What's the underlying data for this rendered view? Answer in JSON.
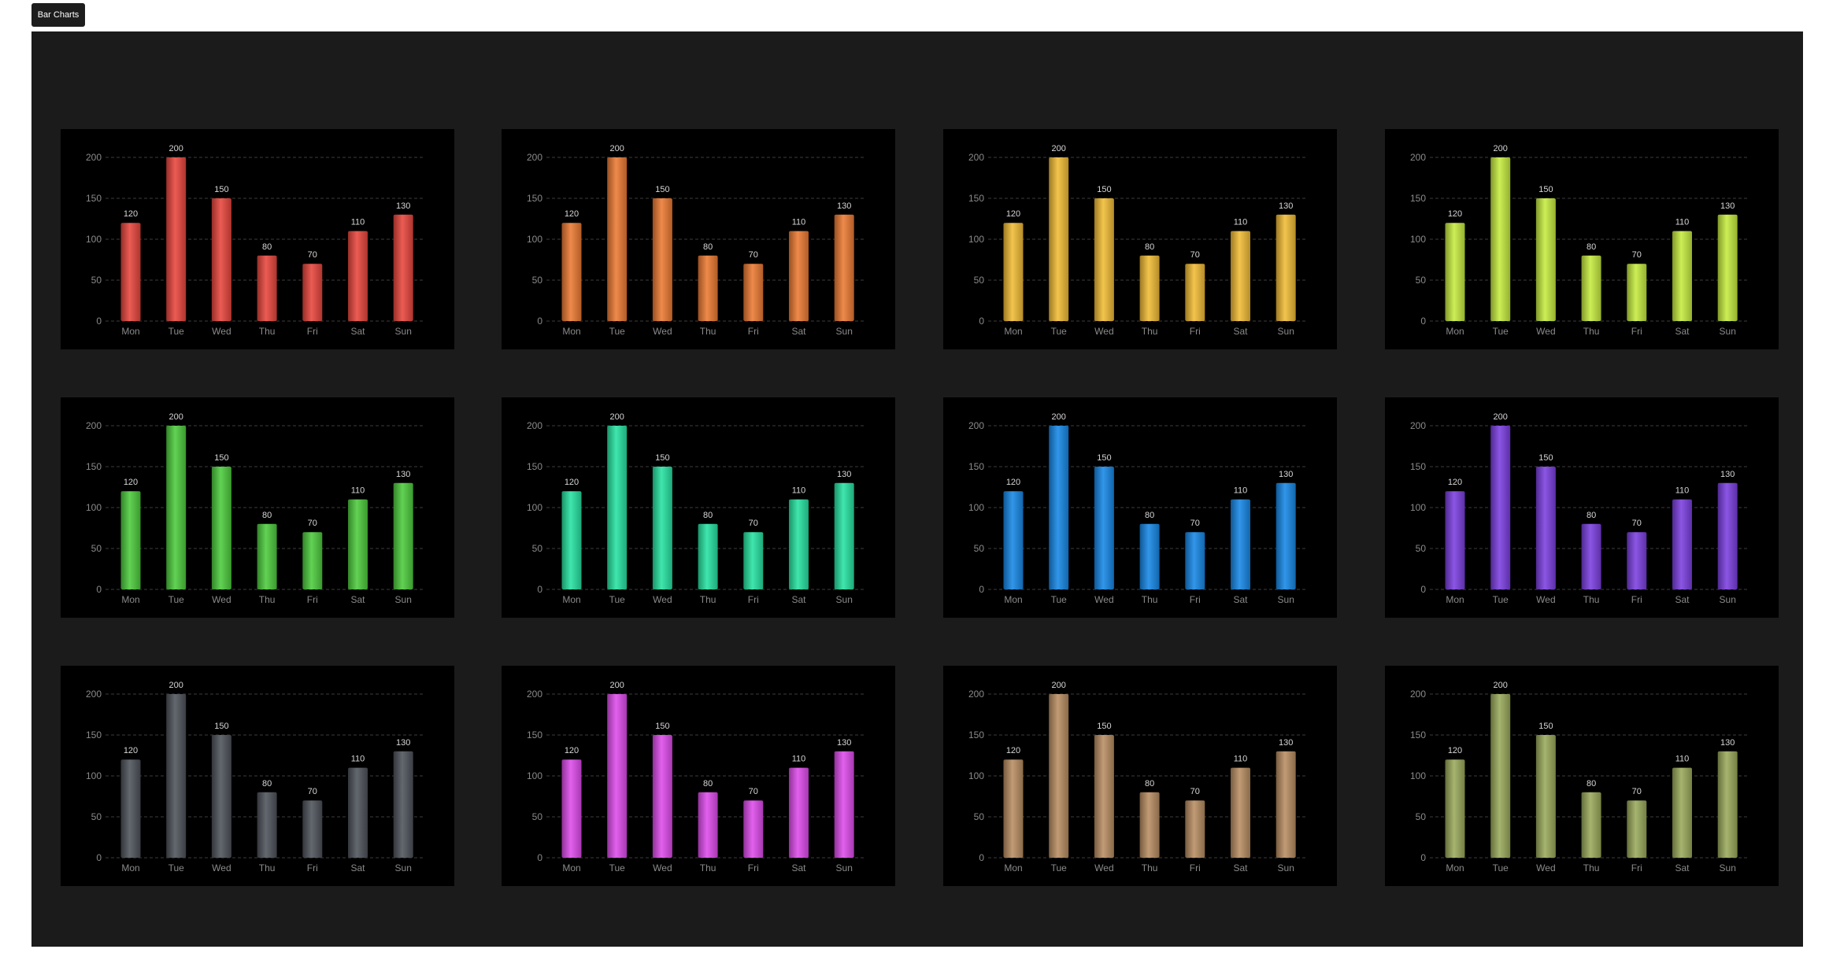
{
  "tab": {
    "label": "Bar Charts"
  },
  "chart_data": [
    {
      "type": "bar",
      "title": "",
      "xlabel": "",
      "ylabel": "",
      "categories": [
        "Mon",
        "Tue",
        "Wed",
        "Thu",
        "Fri",
        "Sat",
        "Sun"
      ],
      "values": [
        120,
        200,
        150,
        80,
        70,
        110,
        130
      ],
      "ylim": [
        0,
        200
      ],
      "yticks": [
        0,
        50,
        100,
        150,
        200
      ],
      "grid": true,
      "color": "#e8463d"
    },
    {
      "type": "bar",
      "title": "",
      "xlabel": "",
      "ylabel": "",
      "categories": [
        "Mon",
        "Tue",
        "Wed",
        "Thu",
        "Fri",
        "Sat",
        "Sun"
      ],
      "values": [
        120,
        200,
        150,
        80,
        70,
        110,
        130
      ],
      "ylim": [
        0,
        200
      ],
      "yticks": [
        0,
        50,
        100,
        150,
        200
      ],
      "grid": true,
      "color": "#ec7a32"
    },
    {
      "type": "bar",
      "title": "",
      "xlabel": "",
      "ylabel": "",
      "categories": [
        "Mon",
        "Tue",
        "Wed",
        "Thu",
        "Fri",
        "Sat",
        "Sun"
      ],
      "values": [
        120,
        200,
        150,
        80,
        70,
        110,
        130
      ],
      "ylim": [
        0,
        200
      ],
      "yticks": [
        0,
        50,
        100,
        150,
        200
      ],
      "grid": true,
      "color": "#f1bc35"
    },
    {
      "type": "bar",
      "title": "",
      "xlabel": "",
      "ylabel": "",
      "categories": [
        "Mon",
        "Tue",
        "Wed",
        "Thu",
        "Fri",
        "Sat",
        "Sun"
      ],
      "values": [
        120,
        200,
        150,
        80,
        70,
        110,
        130
      ],
      "ylim": [
        0,
        200
      ],
      "yticks": [
        0,
        50,
        100,
        150,
        200
      ],
      "grid": true,
      "color": "#c6ec3f"
    },
    {
      "type": "bar",
      "title": "",
      "xlabel": "",
      "ylabel": "",
      "categories": [
        "Mon",
        "Tue",
        "Wed",
        "Thu",
        "Fri",
        "Sat",
        "Sun"
      ],
      "values": [
        120,
        200,
        150,
        80,
        70,
        110,
        130
      ],
      "ylim": [
        0,
        200
      ],
      "yticks": [
        0,
        50,
        100,
        150,
        200
      ],
      "grid": true,
      "color": "#4dcc3d"
    },
    {
      "type": "bar",
      "title": "",
      "xlabel": "",
      "ylabel": "",
      "categories": [
        "Mon",
        "Tue",
        "Wed",
        "Thu",
        "Fri",
        "Sat",
        "Sun"
      ],
      "values": [
        120,
        200,
        150,
        80,
        70,
        110,
        130
      ],
      "ylim": [
        0,
        200
      ],
      "yticks": [
        0,
        50,
        100,
        150,
        200
      ],
      "grid": true,
      "color": "#26e3a2"
    },
    {
      "type": "bar",
      "title": "",
      "xlabel": "",
      "ylabel": "",
      "categories": [
        "Mon",
        "Tue",
        "Wed",
        "Thu",
        "Fri",
        "Sat",
        "Sun"
      ],
      "values": [
        120,
        200,
        150,
        80,
        70,
        110,
        130
      ],
      "ylim": [
        0,
        200
      ],
      "yticks": [
        0,
        50,
        100,
        150,
        200
      ],
      "grid": true,
      "color": "#1688e6"
    },
    {
      "type": "bar",
      "title": "",
      "xlabel": "",
      "ylabel": "",
      "categories": [
        "Mon",
        "Tue",
        "Wed",
        "Thu",
        "Fri",
        "Sat",
        "Sun"
      ],
      "values": [
        120,
        200,
        150,
        80,
        70,
        110,
        130
      ],
      "ylim": [
        0,
        200
      ],
      "yticks": [
        0,
        50,
        100,
        150,
        200
      ],
      "grid": true,
      "color": "#7b3fe0"
    },
    {
      "type": "bar",
      "title": "",
      "xlabel": "",
      "ylabel": "",
      "categories": [
        "Mon",
        "Tue",
        "Wed",
        "Thu",
        "Fri",
        "Sat",
        "Sun"
      ],
      "values": [
        120,
        200,
        150,
        80,
        70,
        110,
        130
      ],
      "ylim": [
        0,
        200
      ],
      "yticks": [
        0,
        50,
        100,
        150,
        200
      ],
      "grid": true,
      "color": "#4e535b"
    },
    {
      "type": "bar",
      "title": "",
      "xlabel": "",
      "ylabel": "",
      "categories": [
        "Mon",
        "Tue",
        "Wed",
        "Thu",
        "Fri",
        "Sat",
        "Sun"
      ],
      "values": [
        120,
        200,
        150,
        80,
        70,
        110,
        130
      ],
      "ylim": [
        0,
        200
      ],
      "yticks": [
        0,
        50,
        100,
        150,
        200
      ],
      "grid": true,
      "color": "#de4bec"
    },
    {
      "type": "bar",
      "title": "",
      "xlabel": "",
      "ylabel": "",
      "categories": [
        "Mon",
        "Tue",
        "Wed",
        "Thu",
        "Fri",
        "Sat",
        "Sun"
      ],
      "values": [
        120,
        200,
        150,
        80,
        70,
        110,
        130
      ],
      "ylim": [
        0,
        200
      ],
      "yticks": [
        0,
        50,
        100,
        150,
        200
      ],
      "grid": true,
      "color": "#b88d62"
    },
    {
      "type": "bar",
      "title": "",
      "xlabel": "",
      "ylabel": "",
      "categories": [
        "Mon",
        "Tue",
        "Wed",
        "Thu",
        "Fri",
        "Sat",
        "Sun"
      ],
      "values": [
        120,
        200,
        150,
        80,
        70,
        110,
        130
      ],
      "ylim": [
        0,
        200
      ],
      "yticks": [
        0,
        50,
        100,
        150,
        200
      ],
      "grid": true,
      "color": "#9aaa5b"
    }
  ]
}
